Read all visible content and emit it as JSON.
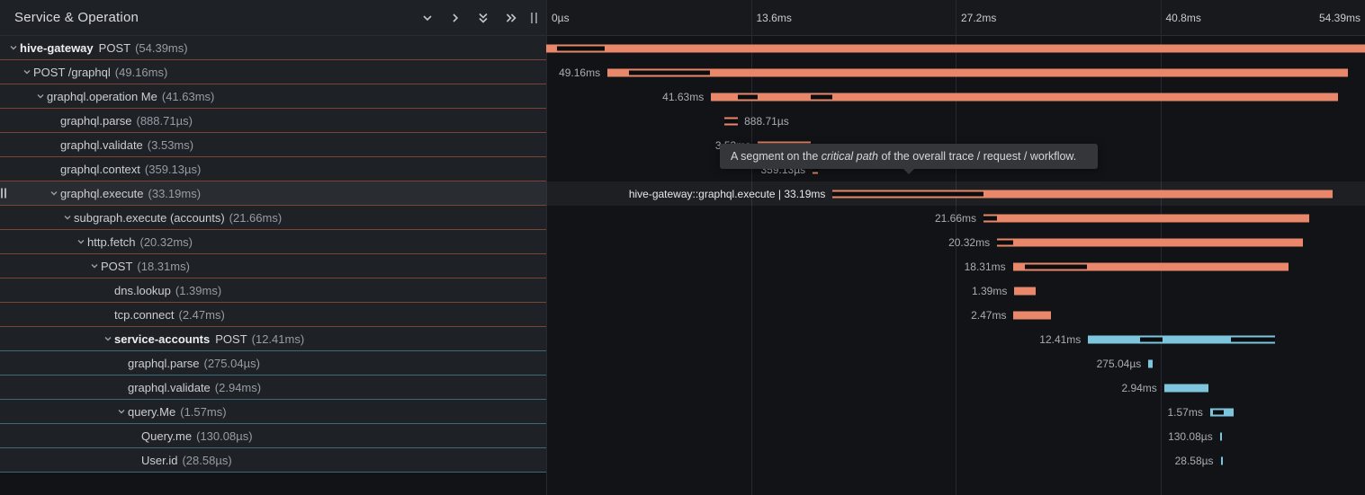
{
  "header": {
    "title": "Service & Operation",
    "controls": [
      {
        "icon": "chevron-down"
      },
      {
        "icon": "chevron-right"
      },
      {
        "icon": "double-chevron-down"
      },
      {
        "icon": "double-chevron-right"
      }
    ]
  },
  "timeline": {
    "total_ms": 54.39,
    "ticks": [
      {
        "label": "0µs",
        "pct": 0
      },
      {
        "label": "13.6ms",
        "pct": 25
      },
      {
        "label": "27.2ms",
        "pct": 50
      },
      {
        "label": "40.8ms",
        "pct": 75
      },
      {
        "label": "54.39ms",
        "pct": 100
      }
    ]
  },
  "tooltip": {
    "text_pre": "A segment on the ",
    "text_italic": "critical path",
    "text_post": " of the overall trace / request / workflow."
  },
  "colors": {
    "span_red": "#e8876a",
    "span_blue": "#7cc5dc",
    "critical_path": "#0c0d10",
    "row_border_red": "#7d4335",
    "row_border_blue": "#3c6877"
  },
  "hovered_span_label": "hive-gateway::graphql.execute | 33.19ms",
  "spans": [
    {
      "level": 0,
      "expandable": true,
      "service": "hive-gateway",
      "name": "POST",
      "duration": "(54.39ms)",
      "color": "red",
      "start_ms": 0,
      "duration_ms": 54.39,
      "bar_label": "",
      "label_side": "none",
      "critical": [
        [
          0.7,
          3.9
        ]
      ]
    },
    {
      "level": 1,
      "expandable": true,
      "service": "",
      "name": "POST /graphql",
      "duration": "(49.16ms)",
      "color": "red",
      "start_ms": 4.07,
      "duration_ms": 49.16,
      "bar_label": "49.16ms",
      "label_side": "left",
      "critical": [
        [
          5.5,
          10.9
        ]
      ]
    },
    {
      "level": 2,
      "expandable": true,
      "service": "",
      "name": "graphql.operation Me",
      "duration": "(41.63ms)",
      "color": "red",
      "start_ms": 10.95,
      "duration_ms": 41.63,
      "bar_label": "41.63ms",
      "label_side": "left",
      "critical": [
        [
          12.74,
          14.06
        ],
        [
          17.59,
          19.03
        ]
      ]
    },
    {
      "level": 3,
      "expandable": false,
      "service": "",
      "name": "graphql.parse",
      "duration": "(888.71µs)",
      "color": "red",
      "start_ms": 11.85,
      "duration_ms": 0.889,
      "bar_label": "888.71µs",
      "label_side": "right",
      "critical": [
        [
          11.85,
          12.74
        ]
      ]
    },
    {
      "level": 3,
      "expandable": false,
      "service": "",
      "name": "graphql.validate",
      "duration": "(3.53ms)",
      "color": "red",
      "start_ms": 14.06,
      "duration_ms": 3.53,
      "bar_label": "3.53ms",
      "label_side": "left",
      "critical": [
        [
          14.06,
          17.59
        ]
      ]
    },
    {
      "level": 3,
      "expandable": false,
      "service": "",
      "name": "graphql.context",
      "duration": "(359.13µs)",
      "color": "red",
      "start_ms": 17.7,
      "duration_ms": 0.359,
      "bar_label": "359.13µs",
      "label_side": "left",
      "critical": [
        [
          17.7,
          18.06
        ]
      ]
    },
    {
      "level": 3,
      "expandable": true,
      "service": "",
      "name": "graphql.execute",
      "duration": "(33.19ms)",
      "color": "red",
      "start_ms": 19.03,
      "duration_ms": 33.19,
      "bar_label": "hive-gateway::graphql.execute | 33.19ms",
      "label_side": "left",
      "hover": true,
      "highlighted": true,
      "critical": [
        [
          19.03,
          29.05
        ]
      ]
    },
    {
      "level": 4,
      "expandable": true,
      "service": "",
      "name": "subgraph.execute (accounts)",
      "duration": "(21.66ms)",
      "color": "red",
      "start_ms": 29.05,
      "duration_ms": 21.66,
      "bar_label": "21.66ms",
      "label_side": "left",
      "critical": [
        [
          29.05,
          29.95
        ]
      ]
    },
    {
      "level": 5,
      "expandable": true,
      "service": "",
      "name": "http.fetch",
      "duration": "(20.32ms)",
      "color": "red",
      "start_ms": 29.95,
      "duration_ms": 20.32,
      "bar_label": "20.32ms",
      "label_side": "left",
      "critical": [
        [
          29.95,
          31.0
        ]
      ]
    },
    {
      "level": 6,
      "expandable": true,
      "service": "",
      "name": "POST",
      "duration": "(18.31ms)",
      "color": "red",
      "start_ms": 31.0,
      "duration_ms": 18.31,
      "bar_label": "18.31ms",
      "label_side": "left",
      "critical": [
        [
          31.8,
          35.95
        ]
      ]
    },
    {
      "level": 7,
      "expandable": false,
      "service": "",
      "name": "dns.lookup",
      "duration": "(1.39ms)",
      "color": "red",
      "start_ms": 31.1,
      "duration_ms": 1.39,
      "bar_label": "1.39ms",
      "label_side": "left",
      "critical": []
    },
    {
      "level": 7,
      "expandable": false,
      "service": "",
      "name": "tcp.connect",
      "duration": "(2.47ms)",
      "color": "red",
      "start_ms": 31.05,
      "duration_ms": 2.47,
      "bar_label": "2.47ms",
      "label_side": "left",
      "critical": []
    },
    {
      "level": 7,
      "expandable": true,
      "service": "service-accounts",
      "name": "POST",
      "duration": "(12.41ms)",
      "color": "blue",
      "start_ms": 36.0,
      "duration_ms": 12.41,
      "bar_label": "12.41ms",
      "label_side": "left",
      "critical": [
        [
          39.43,
          40.93
        ],
        [
          45.48,
          48.41
        ]
      ]
    },
    {
      "level": 8,
      "expandable": false,
      "service": "",
      "name": "graphql.parse",
      "duration": "(275.04µs)",
      "color": "blue",
      "start_ms": 40.0,
      "duration_ms": 0.275,
      "bar_label": "275.04µs",
      "label_side": "left",
      "critical": []
    },
    {
      "level": 8,
      "expandable": false,
      "service": "",
      "name": "graphql.validate",
      "duration": "(2.94ms)",
      "color": "blue",
      "start_ms": 41.05,
      "duration_ms": 2.94,
      "bar_label": "2.94ms",
      "label_side": "left",
      "critical": []
    },
    {
      "level": 8,
      "expandable": true,
      "service": "",
      "name": "query.Me",
      "duration": "(1.57ms)",
      "color": "blue",
      "start_ms": 44.1,
      "duration_ms": 1.57,
      "bar_label": "1.57ms",
      "label_side": "left",
      "critical": [
        [
          44.28,
          45.0
        ]
      ]
    },
    {
      "level": 9,
      "expandable": false,
      "service": "",
      "name": "Query.me",
      "duration": "(130.08µs)",
      "color": "blue",
      "start_ms": 44.75,
      "duration_ms": 0.13,
      "bar_label": "130.08µs",
      "label_side": "left",
      "critical": []
    },
    {
      "level": 9,
      "expandable": false,
      "service": "",
      "name": "User.id",
      "duration": "(28.58µs)",
      "color": "blue",
      "start_ms": 44.8,
      "duration_ms": 0.029,
      "bar_label": "28.58µs",
      "label_side": "left",
      "critical": []
    }
  ]
}
